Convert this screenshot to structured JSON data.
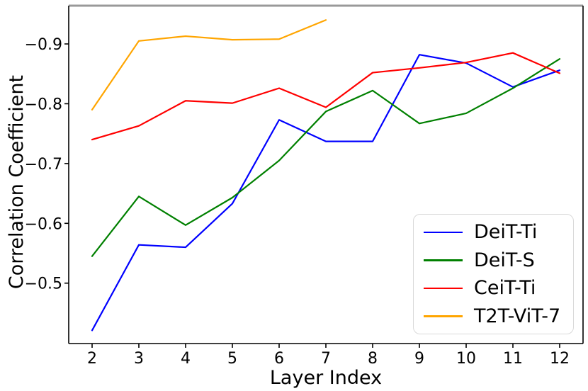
{
  "chart_data": {
    "type": "line",
    "xlabel": "Layer Index",
    "ylabel": "Correlation Coefficient",
    "x": [
      2,
      3,
      4,
      5,
      6,
      7,
      8,
      9,
      10,
      11,
      12
    ],
    "series": [
      {
        "name": "DeiT-Ti",
        "color": "#0000ff",
        "values": [
          -0.421,
          -0.564,
          -0.56,
          -0.633,
          -0.773,
          -0.737,
          -0.737,
          -0.882,
          -0.868,
          -0.828,
          -0.856
        ]
      },
      {
        "name": "DeiT-S",
        "color": "#008000",
        "values": [
          -0.545,
          -0.645,
          -0.597,
          -0.643,
          -0.705,
          -0.787,
          -0.822,
          -0.767,
          -0.784,
          -0.826,
          -0.875
        ]
      },
      {
        "name": "CeiT-Ti",
        "color": "#ff0000",
        "values": [
          -0.74,
          -0.763,
          -0.805,
          -0.801,
          -0.826,
          -0.794,
          -0.852,
          -0.86,
          -0.869,
          -0.885,
          -0.851
        ]
      },
      {
        "name": "T2T-ViT-7",
        "color": "#ffa500",
        "values": [
          -0.79,
          -0.905,
          -0.913,
          -0.907,
          -0.908,
          -0.94,
          null,
          null,
          null,
          null,
          null
        ]
      }
    ],
    "xticks": [
      2,
      3,
      4,
      5,
      6,
      7,
      8,
      9,
      10,
      11,
      12
    ],
    "xtick_labels": [
      "2",
      "3",
      "4",
      "5",
      "6",
      "7",
      "8",
      "9",
      "10",
      "11",
      "12"
    ],
    "yticks": [
      -0.9,
      -0.8,
      -0.7,
      -0.6,
      -0.5
    ],
    "ytick_labels": [
      "−0.9",
      "−0.8",
      "−0.7",
      "−0.6",
      "−0.5"
    ],
    "xlim": [
      1.5,
      12.5
    ],
    "ylim": [
      -0.399,
      -0.964
    ],
    "y_axis_inverted": true,
    "grid": false,
    "legend": {
      "position": "lower right",
      "entries": [
        "DeiT-Ti",
        "DeiT-S",
        "CeiT-Ti",
        "T2T-ViT-7"
      ]
    }
  }
}
